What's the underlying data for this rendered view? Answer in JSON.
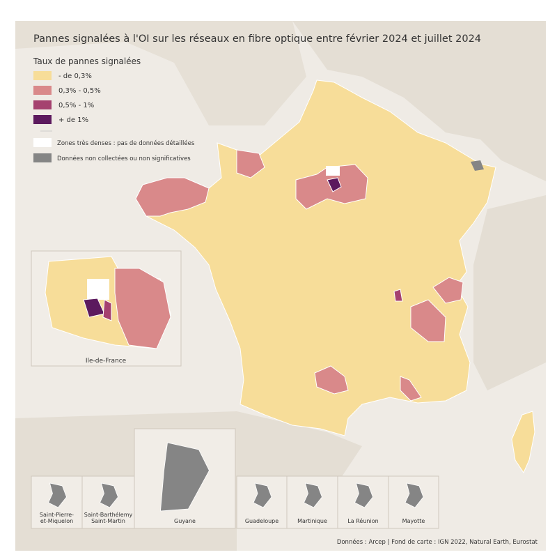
{
  "title": "Pannes signalées à l'OI sur les réseaux en fibre optique entre février 2024 et juillet 2024",
  "legend": {
    "title": "Taux de pannes signalées",
    "items": [
      {
        "label": "- de 0,3%",
        "color": "#f7dd99"
      },
      {
        "label": "0,3% - 0,5%",
        "color": "#d9898a"
      },
      {
        "label": "0,5% - 1%",
        "color": "#a5416f"
      },
      {
        "label": "+ de 1%",
        "color": "#5c1a5e"
      },
      {
        "label": "Zones très denses : pas de données détaillées",
        "color": "#ffffff"
      },
      {
        "label": "Données non collectées ou non significatives",
        "color": "#858585"
      }
    ]
  },
  "inset": {
    "label": "Ile-de-France"
  },
  "overseas": [
    {
      "lines": [
        "Saint-Pierre-",
        "et-Miquelon"
      ]
    },
    {
      "lines": [
        "Saint-Barthélemy",
        "Saint-Martin"
      ]
    },
    {
      "lines": [
        "Guyane"
      ]
    },
    {
      "lines": [
        "Guadeloupe"
      ]
    },
    {
      "lines": [
        "Martinique"
      ]
    },
    {
      "lines": [
        "La Réunion"
      ]
    },
    {
      "lines": [
        "Mayotte"
      ]
    }
  ],
  "source": "Données : Arcep | Fond de carte : IGN 2022, Natural Earth, Eurostat"
}
